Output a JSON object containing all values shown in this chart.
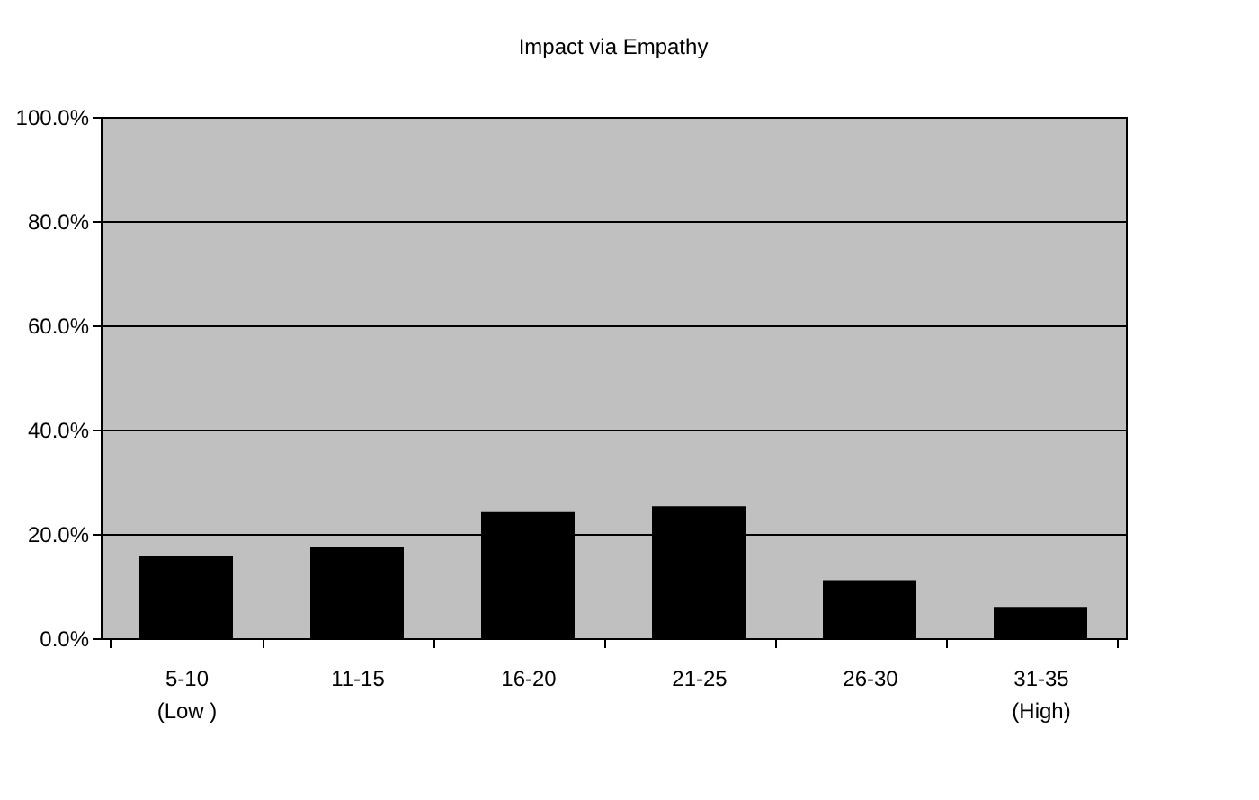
{
  "chart_data": {
    "type": "bar",
    "title": "Impact via Empathy",
    "categories": [
      "5-10\n(Low )",
      "11-15",
      "16-20",
      "21-25",
      "26-30",
      "31-35\n(High)"
    ],
    "values": [
      15.7,
      17.6,
      24.2,
      25.3,
      11.1,
      6.0
    ],
    "color": "#000000",
    "ylim": [
      0,
      100
    ],
    "yticks": [
      {
        "value": 0,
        "label": "0.0%"
      },
      {
        "value": 20,
        "label": "20.0%"
      },
      {
        "value": 40,
        "label": "40.0%"
      },
      {
        "value": 60,
        "label": "60.0%"
      },
      {
        "value": 80,
        "label": "80.0%"
      },
      {
        "value": 100,
        "label": "100.0%"
      }
    ],
    "grid": "y"
  }
}
